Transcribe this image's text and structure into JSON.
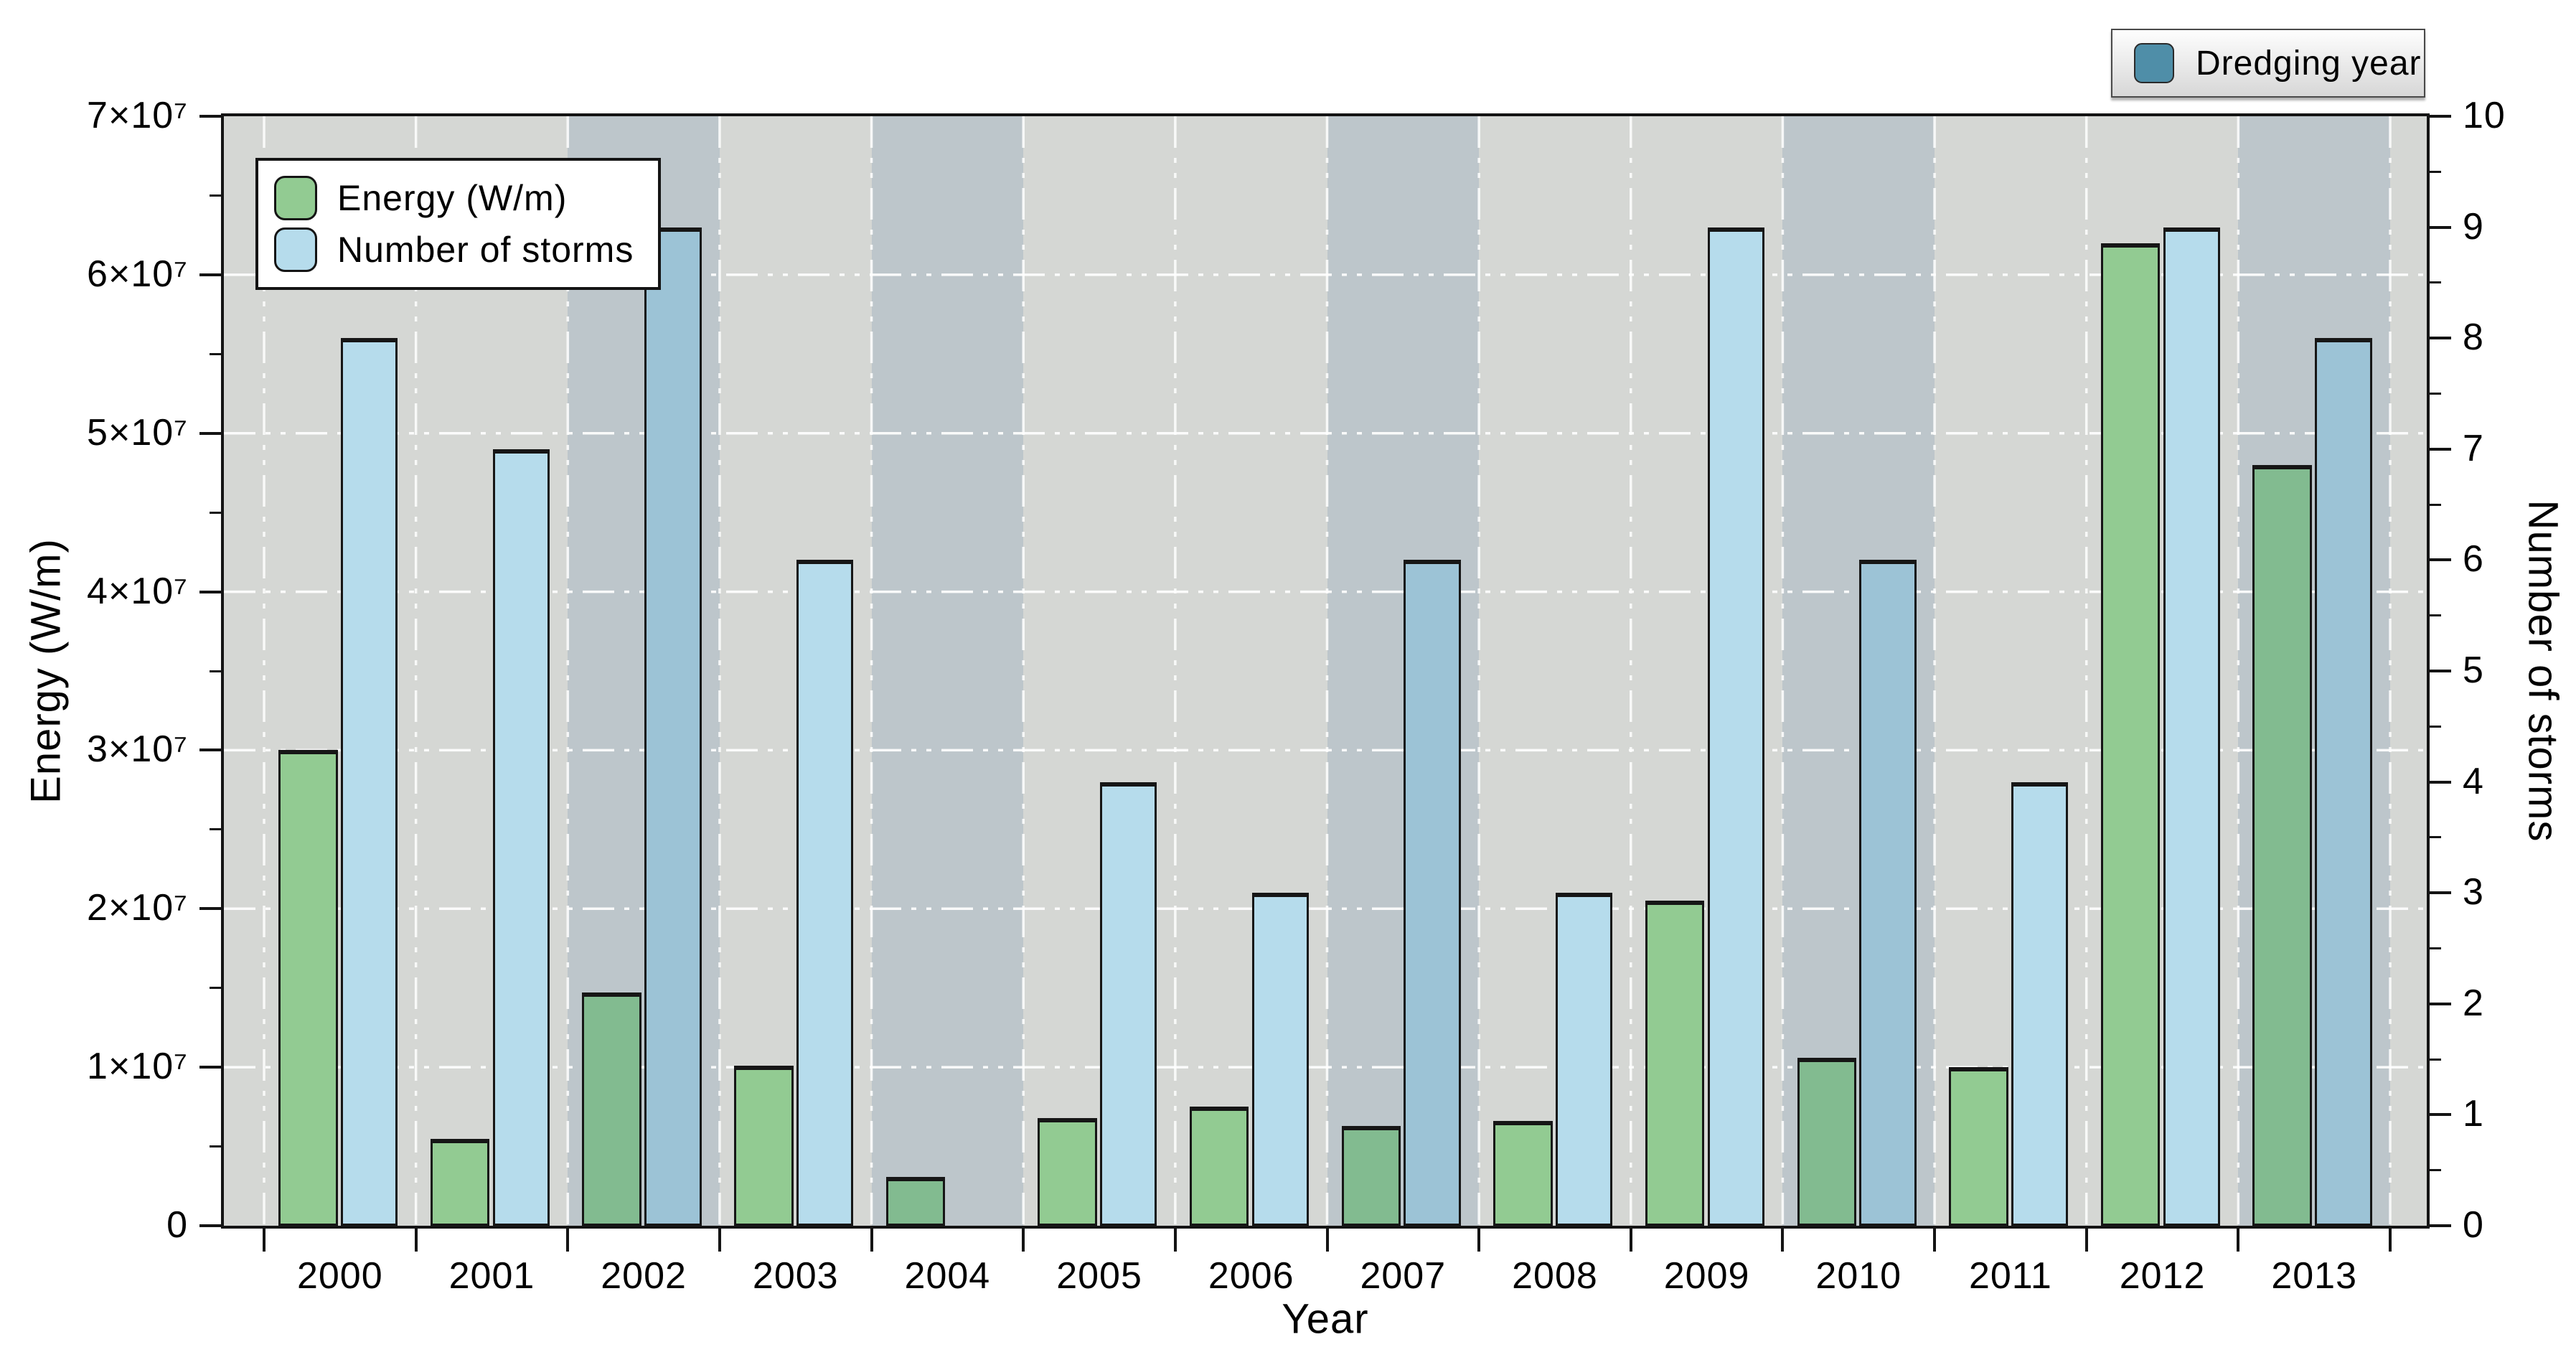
{
  "chart_data": {
    "type": "bar",
    "title": "",
    "categories": [
      "2000",
      "2001",
      "2002",
      "2003",
      "2004",
      "2005",
      "2006",
      "2007",
      "2008",
      "2009",
      "2010",
      "2011",
      "2012",
      "2013"
    ],
    "series": [
      {
        "name": "Energy (W/m)",
        "axis": "left",
        "values": [
          30000000,
          5500000,
          14700000,
          10100000,
          3100000,
          6800000,
          7500000,
          6300000,
          6600000,
          20500000,
          10600000,
          10000000,
          62000000,
          48000000
        ]
      },
      {
        "name": "Number of storms",
        "axis": "right",
        "values": [
          8,
          7,
          9,
          6,
          0,
          4,
          3,
          6,
          3,
          9,
          6,
          4,
          9,
          8
        ]
      }
    ],
    "dredging_years": [
      "2002",
      "2004",
      "2007",
      "2010",
      "2013"
    ],
    "axes": {
      "x": {
        "label": "Year"
      },
      "left": {
        "label": "Energy (W/m)",
        "min": 0,
        "max": 70000000,
        "major_step": 10000000,
        "minor_step": 5000000,
        "tick_labels": [
          "0",
          "1×10⁷",
          "2×10⁷",
          "3×10⁷",
          "4×10⁷",
          "5×10⁷",
          "6×10⁷",
          "7×10⁷"
        ]
      },
      "right": {
        "label": "Number of storms",
        "min": 0,
        "max": 10,
        "major_step": 1,
        "minor_step": 0.5,
        "tick_labels": [
          "0",
          "1",
          "2",
          "3",
          "4",
          "5",
          "6",
          "7",
          "8",
          "9",
          "10"
        ]
      }
    },
    "legend": {
      "energy_label": "Energy (W/m)",
      "storms_label": "Number of storms",
      "dredging_label": "Dredging year"
    },
    "layout_hints": {
      "grid": "white dash-dot major gridlines; vertical lines at year boundaries",
      "series_legend_position": "upper-left inside plot",
      "dredging_legend_position": "upper-right above plot"
    },
    "colors": {
      "plot_bg": "#d5d7d4",
      "dredging_band": "#bdc6cb",
      "energy_bar": "#92cb92",
      "energy_bar_dredging": "#82bb90",
      "storms_bar": "#b6dcec",
      "storms_bar_dredging": "#9cc3d6",
      "dredging_swatch": "#4f8ea8",
      "bar_outline": "#161616",
      "gridline": "#ffffff"
    }
  }
}
